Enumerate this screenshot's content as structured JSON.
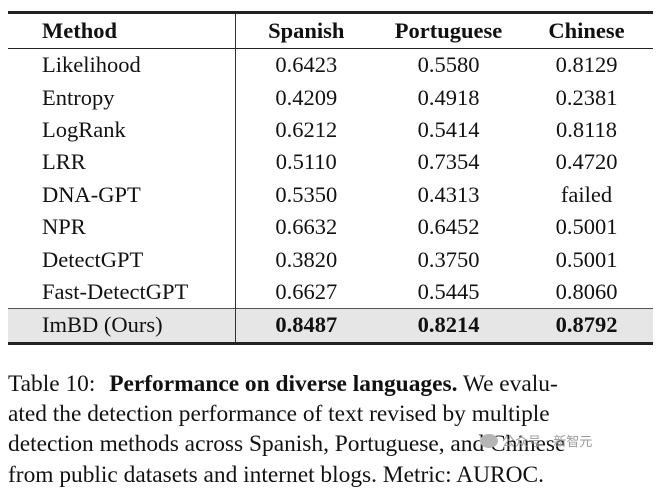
{
  "table": {
    "headers": [
      "Method",
      "Spanish",
      "Portuguese",
      "Chinese"
    ],
    "rows": [
      {
        "method": "Likelihood",
        "spanish": "0.6423",
        "portuguese": "0.5580",
        "chinese": "0.8129"
      },
      {
        "method": "Entropy",
        "spanish": "0.4209",
        "portuguese": "0.4918",
        "chinese": "0.2381"
      },
      {
        "method": "LogRank",
        "spanish": "0.6212",
        "portuguese": "0.5414",
        "chinese": "0.8118"
      },
      {
        "method": "LRR",
        "spanish": "0.5110",
        "portuguese": "0.7354",
        "chinese": "0.4720"
      },
      {
        "method": "DNA-GPT",
        "spanish": "0.5350",
        "portuguese": "0.4313",
        "chinese": "failed"
      },
      {
        "method": "NPR",
        "spanish": "0.6632",
        "portuguese": "0.6452",
        "chinese": "0.5001"
      },
      {
        "method": "DetectGPT",
        "spanish": "0.3820",
        "portuguese": "0.3750",
        "chinese": "0.5001"
      },
      {
        "method": "Fast-DetectGPT",
        "spanish": "0.6627",
        "portuguese": "0.5445",
        "chinese": "0.8060"
      },
      {
        "method": "ImBD (Ours)",
        "spanish": "0.8487",
        "portuguese": "0.8214",
        "chinese": "0.8792"
      }
    ],
    "highlight_row_color": "#e6e6e6"
  },
  "caption": {
    "label": "Table 10:",
    "title": "Performance on diverse languages.",
    "line1_rest": "We evalu-",
    "line2": "ated the detection performance of text revised by multiple",
    "line3": "detection methods across Spanish, Portuguese, and Chinese",
    "line4": "from public datasets and internet blogs. Metric: AUROC."
  },
  "watermark": {
    "text": "公众号 · 新智元"
  }
}
